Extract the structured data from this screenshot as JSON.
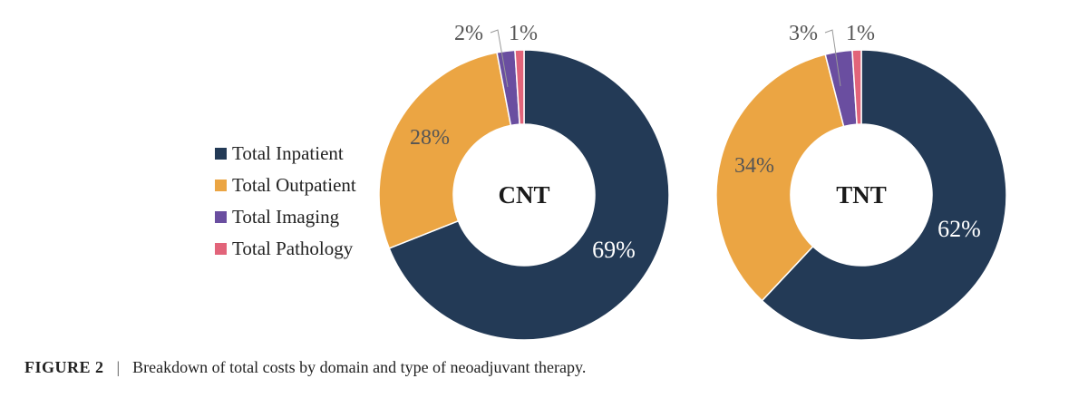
{
  "chart_data": [
    {
      "type": "pie",
      "subtype": "donut",
      "center_label": "CNT",
      "categories": [
        "Total Inpatient",
        "Total Outpatient",
        "Total Imaging",
        "Total Pathology"
      ],
      "values": [
        69,
        28,
        2,
        1
      ],
      "value_labels": [
        "69%",
        "28%",
        "2%",
        "1%"
      ]
    },
    {
      "type": "pie",
      "subtype": "donut",
      "center_label": "TNT",
      "categories": [
        "Total Inpatient",
        "Total Outpatient",
        "Total Imaging",
        "Total Pathology"
      ],
      "values": [
        62,
        34,
        3,
        1
      ],
      "value_labels": [
        "62%",
        "34%",
        "3%",
        "1%"
      ]
    }
  ],
  "legend": [
    {
      "label": "Total Inpatient",
      "color": "#233a56"
    },
    {
      "label": "Total Outpatient",
      "color": "#eba543"
    },
    {
      "label": "Total Imaging",
      "color": "#6a4ea0"
    },
    {
      "label": "Total Pathology",
      "color": "#e2647a"
    }
  ],
  "caption": {
    "label": "FIGURE 2",
    "separator": "|",
    "text": "Breakdown of total costs by domain and type of neoadjuvant therapy."
  }
}
